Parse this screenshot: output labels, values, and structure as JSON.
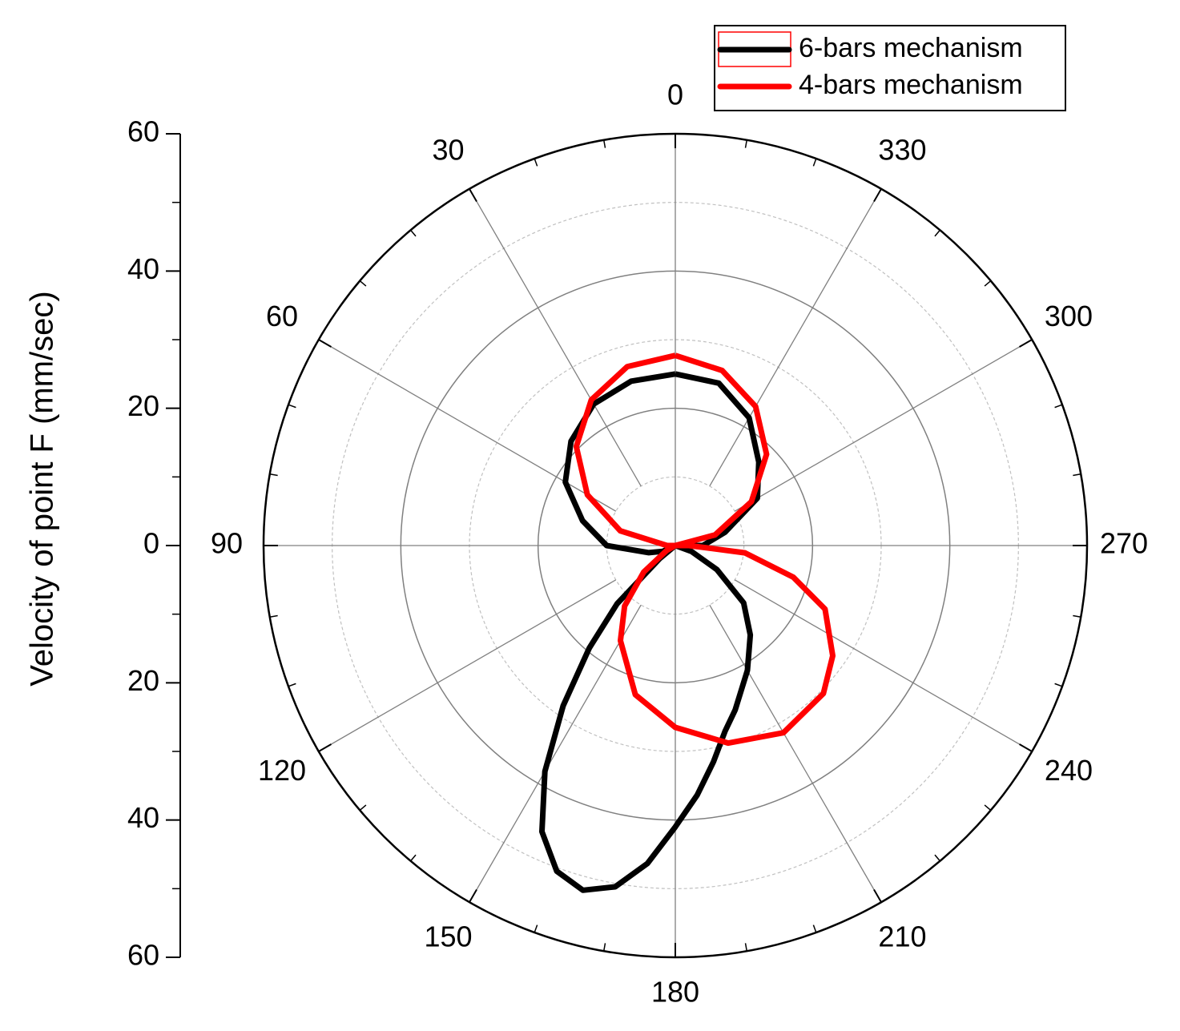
{
  "chart_data": {
    "type": "polar",
    "y_label": "Velocity of point F (mm/sec)",
    "rlim": [
      0,
      60
    ],
    "rticks": [
      0,
      20,
      40,
      60
    ],
    "angle_ticks": [
      0,
      30,
      60,
      90,
      120,
      150,
      180,
      210,
      240,
      270,
      300,
      330
    ],
    "angle_direction": "counterclockwise",
    "zero_location": "top",
    "legend_position": "top right",
    "series": [
      {
        "name": "6-bars mechanism",
        "color": "#000000",
        "theta": [
          0,
          15,
          30,
          45,
          60,
          75,
          90,
          105,
          115,
          125,
          130,
          135,
          140,
          145,
          150,
          155,
          160,
          165,
          170,
          175,
          180,
          185,
          190,
          195,
          200,
          210,
          220,
          230,
          240,
          250,
          258,
          270,
          285,
          300,
          315,
          330,
          345,
          360
        ],
        "r": [
          25,
          24.8,
          23.8,
          21.5,
          18.5,
          14,
          10,
          4,
          2,
          0,
          3,
          12,
          19.5,
          28.5,
          38,
          46,
          50.5,
          52,
          50.5,
          46.5,
          41,
          36.5,
          32,
          28,
          25.5,
          21,
          17,
          13,
          7,
          2.5,
          0,
          4,
          7.5,
          13.8,
          17.2,
          21.5,
          24.5,
          25
        ]
      },
      {
        "name": "4-bars mechanism",
        "color": "#ff0000",
        "theta": [
          0,
          15,
          30,
          45,
          60,
          75,
          90,
          100,
          120,
          130,
          140,
          150,
          165,
          180,
          195,
          210,
          225,
          235,
          247,
          255,
          264,
          270,
          275,
          285,
          300,
          315,
          330,
          345,
          360
        ],
        "r": [
          27.7,
          27,
          24.5,
          20.4,
          14.8,
          8.3,
          1.2,
          0,
          1.5,
          6,
          11.5,
          16,
          22.5,
          26.5,
          29.8,
          31.5,
          30.5,
          28,
          23.7,
          17.8,
          10.2,
          2,
          0,
          6,
          12.8,
          18.8,
          23.4,
          26.4,
          27.7
        ]
      }
    ]
  }
}
